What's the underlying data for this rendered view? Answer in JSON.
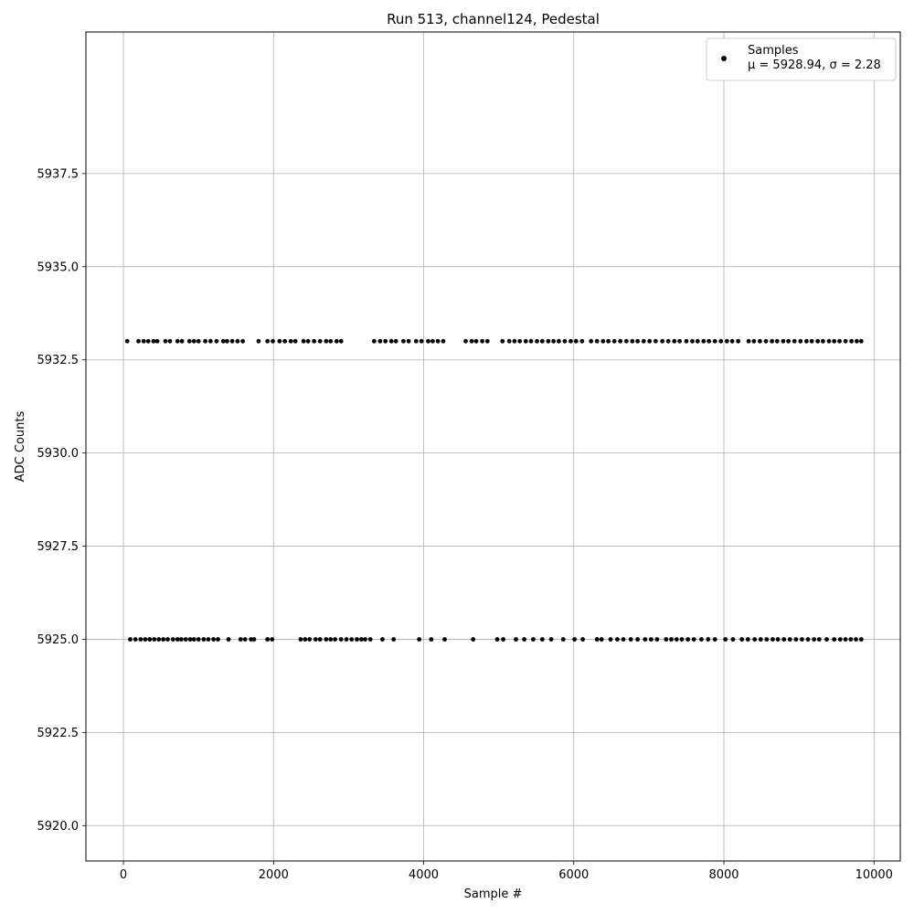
{
  "chart_data": {
    "type": "scatter",
    "title": "Run 513, channel124, Pedestal",
    "xlabel": "Sample #",
    "ylabel": "ADC Counts",
    "xlim": [
      -500,
      10350
    ],
    "ylim": [
      5919.05,
      5941.3
    ],
    "xticks": [
      0,
      2000,
      4000,
      6000,
      8000,
      10000
    ],
    "xtick_labels": [
      "0",
      "2000",
      "4000",
      "6000",
      "8000",
      "10000"
    ],
    "yticks": [
      5920.0,
      5922.5,
      5925.0,
      5927.5,
      5930.0,
      5932.5,
      5935.0,
      5937.5
    ],
    "ytick_labels": [
      "5920.0",
      "5922.5",
      "5925.0",
      "5927.5",
      "5930.0",
      "5932.5",
      "5935.0",
      "5937.5"
    ],
    "grid": true,
    "legend": {
      "placement": "upper-right",
      "entries": [
        {
          "label": "Samples",
          "stats": "μ = 5928.94, σ = 2.28"
        }
      ]
    },
    "marker_color": "#000000",
    "n_samples": 9840,
    "series": [
      {
        "name": "Samples",
        "levels": [
          {
            "y": 5933,
            "x": [
              50,
              200,
              270,
              330,
              400,
              450,
              560,
              620,
              720,
              780,
              880,
              940,
              1000,
              1090,
              1160,
              1240,
              1330,
              1380,
              1450,
              1520,
              1590,
              1800,
              1920,
              1990,
              2080,
              2150,
              2230,
              2290,
              2400,
              2460,
              2540,
              2620,
              2700,
              2760,
              2840,
              2900,
              3340,
              3420,
              3490,
              3570,
              3630,
              3730,
              3800,
              3900,
              3970,
              4060,
              4120,
              4190,
              4260,
              4560,
              4640,
              4700,
              4780,
              4850,
              5050,
              5140,
              5210,
              5280,
              5360,
              5430,
              5510,
              5580,
              5660,
              5730,
              5800,
              5880,
              5960,
              6030,
              6110,
              6230,
              6310,
              6390,
              6460,
              6540,
              6620,
              6700,
              6780,
              6850,
              6930,
              7010,
              7090,
              7180,
              7260,
              7340,
              7410,
              7500,
              7580,
              7650,
              7730,
              7800,
              7880,
              7960,
              8040,
              8110,
              8190,
              8330,
              8400,
              8480,
              8560,
              8640,
              8710,
              8790,
              8860,
              8940,
              9020,
              9100,
              9170,
              9250,
              9320,
              9400,
              9470,
              9540,
              9620,
              9700,
              9770,
              9830
            ]
          },
          {
            "y": 5925,
            "x": [
              90,
              160,
              230,
              290,
              350,
              410,
              470,
              530,
              590,
              660,
              720,
              770,
              830,
              890,
              940,
              1000,
              1070,
              1130,
              1200,
              1260,
              1400,
              1560,
              1620,
              1700,
              1740,
              1920,
              1980,
              2360,
              2420,
              2480,
              2560,
              2620,
              2700,
              2760,
              2820,
              2900,
              2970,
              3040,
              3110,
              3170,
              3220,
              3290,
              3450,
              3600,
              3940,
              4100,
              4280,
              4660,
              4980,
              5060,
              5230,
              5340,
              5460,
              5580,
              5700,
              5860,
              6010,
              6120,
              6310,
              6370,
              6490,
              6580,
              6660,
              6760,
              6850,
              6950,
              7030,
              7110,
              7230,
              7300,
              7370,
              7440,
              7520,
              7600,
              7700,
              7790,
              7880,
              8020,
              8120,
              8240,
              8320,
              8410,
              8490,
              8570,
              8650,
              8720,
              8800,
              8880,
              8960,
              9040,
              9120,
              9200,
              9270,
              9370,
              9470,
              9550,
              9620,
              9690,
              9760,
              9830
            ]
          }
        ]
      }
    ]
  }
}
